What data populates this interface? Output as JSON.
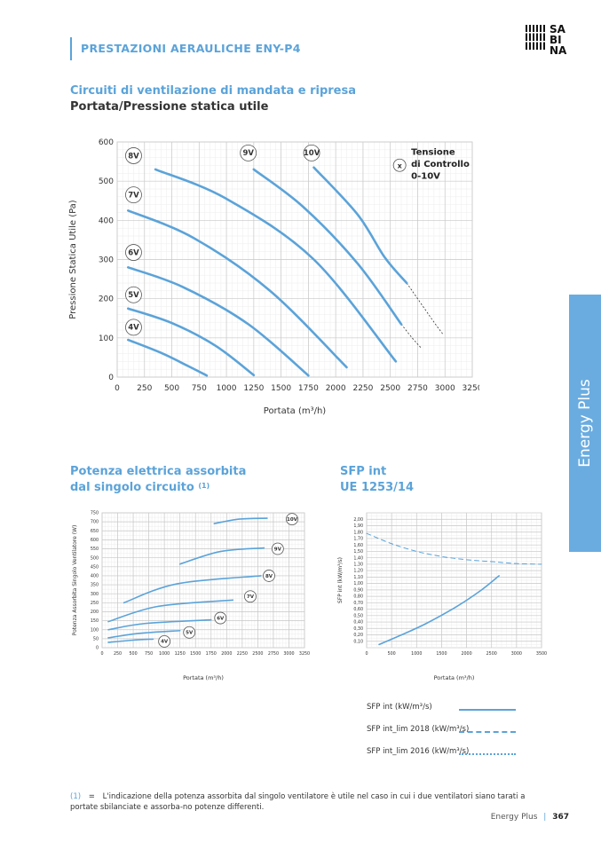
{
  "header": {
    "title": "PRESTAZIONI AERAULICHE ENY-P4",
    "logo_lines": [
      "SA",
      "BI",
      "NA"
    ]
  },
  "side_tab": {
    "label": "Energy Plus"
  },
  "section1": {
    "title": "Circuiti di ventilazione di mandata e ripresa",
    "subtitle": "Portata/Pressione statica utile"
  },
  "section2": {
    "title_line1": "Potenza elettrica assorbita",
    "title_line2": "dal singolo circuito",
    "note_ref": "(1)"
  },
  "section3": {
    "title_line1": "SFP int",
    "title_line2": "UE 1253/14"
  },
  "legend": {
    "solid": "SFP int (kW/m³/s)",
    "dashed": "SFP int_lim 2018 (kW/m³/s)",
    "dotted": "SFP int_lim 2016 (kW/m³/s)"
  },
  "footnote": {
    "mark": "(1)",
    "eq": "=",
    "text": "L'indicazione della potenza assorbita dal singolo ventilatore è utile nel caso in cui i due ventilatori siano tarati a portate sbilanciate e assorba-no potenze differenti."
  },
  "footer": {
    "brand": "Energy Plus",
    "sep": "|",
    "page": "367"
  },
  "chart_data": [
    {
      "type": "line",
      "title": "Portata/Pressione statica utile",
      "xlabel": "Portata (m³/h)",
      "ylabel": "Pressione Statica Utile (Pa)",
      "xlim": [
        0,
        3250
      ],
      "ylim": [
        0,
        600
      ],
      "xticks": [
        0,
        250,
        500,
        750,
        1000,
        1250,
        1500,
        1750,
        2000,
        2250,
        2500,
        2750,
        3000,
        3250
      ],
      "yticks": [
        0,
        100,
        200,
        300,
        400,
        500,
        600
      ],
      "legend_box": {
        "symbol": "x",
        "text": [
          "Tensione",
          "di Controllo",
          "0-10V"
        ]
      },
      "series": [
        {
          "name": "4V",
          "points": [
            [
              100,
              95
            ],
            [
              400,
              62
            ],
            [
              650,
              28
            ],
            [
              820,
              4
            ]
          ]
        },
        {
          "name": "5V",
          "points": [
            [
              100,
              175
            ],
            [
              500,
              138
            ],
            [
              900,
              80
            ],
            [
              1250,
              5
            ]
          ]
        },
        {
          "name": "6V",
          "points": [
            [
              100,
              280
            ],
            [
              600,
              230
            ],
            [
              1200,
              135
            ],
            [
              1750,
              4
            ]
          ]
        },
        {
          "name": "7V",
          "points": [
            [
              100,
              425
            ],
            [
              700,
              355
            ],
            [
              1400,
              220
            ],
            [
              2100,
              25
            ]
          ]
        },
        {
          "name": "8V",
          "points": [
            [
              350,
              530
            ],
            [
              1000,
              455
            ],
            [
              1800,
              300
            ],
            [
              2550,
              40
            ]
          ]
        },
        {
          "name": "9V",
          "points": [
            [
              1250,
              530
            ],
            [
              1700,
              435
            ],
            [
              2200,
              290
            ],
            [
              2600,
              135
            ]
          ]
        },
        {
          "name": "10V",
          "points": [
            [
              1800,
              535
            ],
            [
              2200,
              415
            ],
            [
              2450,
              305
            ],
            [
              2650,
              240
            ]
          ]
        }
      ],
      "limit_lines": [
        {
          "points": [
            [
              2650,
              240
            ],
            [
              2750,
              200
            ],
            [
              2900,
              140
            ],
            [
              2980,
              110
            ]
          ]
        },
        {
          "points": [
            [
              2600,
              135
            ],
            [
              2700,
              100
            ],
            [
              2780,
              75
            ]
          ]
        }
      ],
      "labels": [
        {
          "text": "8V",
          "at": [
            150,
            565
          ]
        },
        {
          "text": "9V",
          "at": [
            1200,
            572
          ]
        },
        {
          "text": "10V",
          "at": [
            1780,
            572
          ]
        },
        {
          "text": "7V",
          "at": [
            150,
            465
          ]
        },
        {
          "text": "6V",
          "at": [
            150,
            318
          ]
        },
        {
          "text": "5V",
          "at": [
            150,
            210
          ]
        },
        {
          "text": "4V",
          "at": [
            150,
            127
          ]
        }
      ]
    },
    {
      "type": "line",
      "title": "Potenza elettrica assorbita dal singolo circuito",
      "xlabel": "Portata (m³/h)",
      "ylabel": "Potenza Assorbita Singolo Ventilatore (W)",
      "xlim": [
        0,
        3250
      ],
      "ylim": [
        0,
        750
      ],
      "xticks": [
        0,
        250,
        500,
        750,
        1000,
        1250,
        1500,
        1750,
        2000,
        2250,
        2500,
        2750,
        3000,
        3250
      ],
      "yticks": [
        0,
        50,
        100,
        150,
        200,
        250,
        300,
        350,
        400,
        450,
        500,
        550,
        600,
        650,
        700,
        750
      ],
      "series": [
        {
          "name": "4V",
          "points": [
            [
              100,
              30
            ],
            [
              500,
              42
            ],
            [
              820,
              48
            ]
          ]
        },
        {
          "name": "5V",
          "points": [
            [
              100,
              55
            ],
            [
              600,
              80
            ],
            [
              1250,
              95
            ]
          ]
        },
        {
          "name": "6V",
          "points": [
            [
              100,
              100
            ],
            [
              700,
              135
            ],
            [
              1750,
              155
            ]
          ]
        },
        {
          "name": "7V",
          "points": [
            [
              100,
              145
            ],
            [
              900,
              230
            ],
            [
              2100,
              265
            ]
          ]
        },
        {
          "name": "8V",
          "points": [
            [
              350,
              250
            ],
            [
              1200,
              355
            ],
            [
              2550,
              400
            ]
          ]
        },
        {
          "name": "9V",
          "points": [
            [
              1250,
              465
            ],
            [
              1900,
              535
            ],
            [
              2600,
              555
            ]
          ]
        },
        {
          "name": "10V",
          "points": [
            [
              1800,
              690
            ],
            [
              2200,
              715
            ],
            [
              2650,
              720
            ]
          ]
        }
      ],
      "labels": [
        {
          "text": "10V",
          "at": [
            3050,
            715
          ]
        },
        {
          "text": "9V",
          "at": [
            2820,
            550
          ]
        },
        {
          "text": "8V",
          "at": [
            2680,
            400
          ]
        },
        {
          "text": "7V",
          "at": [
            2380,
            285
          ]
        },
        {
          "text": "6V",
          "at": [
            1900,
            165
          ]
        },
        {
          "text": "5V",
          "at": [
            1400,
            85
          ]
        },
        {
          "text": "4V",
          "at": [
            1000,
            35
          ]
        }
      ]
    },
    {
      "type": "line",
      "title": "SFP int UE 1253/14",
      "xlabel": "Portata (m³/h)",
      "ylabel": "SFP int (kW/m³/s)",
      "xlim": [
        0,
        3500
      ],
      "ylim": [
        0,
        2.1
      ],
      "xticks": [
        0,
        500,
        1000,
        1500,
        2000,
        2500,
        3000,
        3500
      ],
      "yticks": [
        0.1,
        0.2,
        0.3,
        0.4,
        0.5,
        0.6,
        0.7,
        0.8,
        0.9,
        1.0,
        1.1,
        1.2,
        1.3,
        1.4,
        1.5,
        1.6,
        1.7,
        1.8,
        1.9,
        2.0
      ],
      "ytick_labels": [
        "0,10",
        "0,20",
        "0,30",
        "0,40",
        "0,50",
        "0,60",
        "0,70",
        "0,80",
        "0,90",
        "1,00",
        "1,10",
        "1,20",
        "1,30",
        "1,40",
        "1,50",
        "1,60",
        "1,70",
        "1,80",
        "1,90",
        "2,00"
      ],
      "series": [
        {
          "name": "SFP int",
          "style": "solid",
          "points": [
            [
              250,
              0.05
            ],
            [
              700,
              0.2
            ],
            [
              1200,
              0.38
            ],
            [
              1800,
              0.64
            ],
            [
              2300,
              0.9
            ],
            [
              2650,
              1.12
            ]
          ]
        },
        {
          "name": "SFP int_lim 2018",
          "style": "dashed",
          "points": [
            [
              0,
              1.78
            ],
            [
              500,
              1.62
            ],
            [
              1000,
              1.5
            ],
            [
              1500,
              1.42
            ],
            [
              2000,
              1.37
            ],
            [
              2500,
              1.34
            ],
            [
              3000,
              1.31
            ],
            [
              3500,
              1.3
            ]
          ]
        }
      ]
    }
  ]
}
